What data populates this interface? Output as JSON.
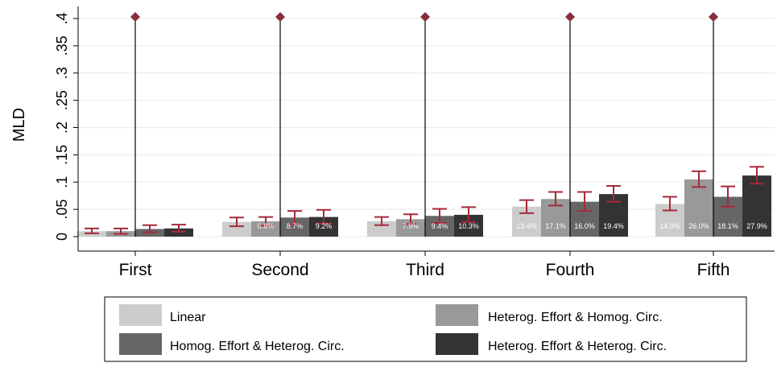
{
  "chart_data": {
    "type": "bar",
    "ylabel": "MLD",
    "ylim": [
      0,
      0.4
    ],
    "yticks": [
      0,
      0.05,
      0.1,
      0.15,
      0.2,
      0.25,
      0.3,
      0.35,
      0.4
    ],
    "ytick_labels": [
      "0",
      ".05",
      ".1",
      ".15",
      ".2",
      ".25",
      ".3",
      ".35",
      ".4"
    ],
    "grid": true,
    "legend_position": "bottom",
    "categories": [
      "First",
      "Second",
      "Third",
      "Fourth",
      "Fifth"
    ],
    "series": [
      {
        "name": "Linear",
        "color": "#cccccc",
        "values": [
          0.01,
          0.027,
          0.028,
          0.055,
          0.06
        ],
        "ci_low": [
          0.006,
          0.019,
          0.021,
          0.043,
          0.048
        ],
        "ci_high": [
          0.015,
          0.035,
          0.036,
          0.067,
          0.073
        ],
        "pct_labels": [
          "",
          "",
          "",
          "13.4%",
          "14.9%"
        ]
      },
      {
        "name": "Heterog. Effort & Homog. Circ.",
        "color": "#999999",
        "values": [
          0.01,
          0.028,
          0.032,
          0.069,
          0.105
        ],
        "ci_low": [
          0.005,
          0.02,
          0.023,
          0.057,
          0.091
        ],
        "ci_high": [
          0.015,
          0.036,
          0.041,
          0.082,
          0.12
        ],
        "pct_labels": [
          "",
          "6.8%",
          "7.9%",
          "17.1%",
          "26.0%"
        ]
      },
      {
        "name": "Homog. Effort & Heterog. Circ.",
        "color": "#666666",
        "values": [
          0.014,
          0.035,
          0.038,
          0.064,
          0.073
        ],
        "ci_low": [
          0.008,
          0.023,
          0.025,
          0.047,
          0.055
        ],
        "ci_high": [
          0.021,
          0.047,
          0.051,
          0.082,
          0.092
        ],
        "pct_labels": [
          "",
          "8.7%",
          "9.4%",
          "16.0%",
          "18.1%"
        ]
      },
      {
        "name": "Heterog. Effort & Heterog. Circ.",
        "color": "#333333",
        "values": [
          0.015,
          0.036,
          0.04,
          0.078,
          0.112
        ],
        "ci_low": [
          0.009,
          0.024,
          0.027,
          0.064,
          0.097
        ],
        "ci_high": [
          0.022,
          0.049,
          0.054,
          0.093,
          0.128
        ],
        "pct_labels": [
          "",
          "9.2%",
          "10.3%",
          "19.4%",
          "27.9%"
        ]
      }
    ],
    "total_marker": {
      "values": [
        0.403,
        0.403,
        0.403,
        0.403,
        0.403
      ],
      "color": "#8b2d3b"
    },
    "errorbar_color": "#a52a3a",
    "grid_color": "#e7eef0"
  }
}
